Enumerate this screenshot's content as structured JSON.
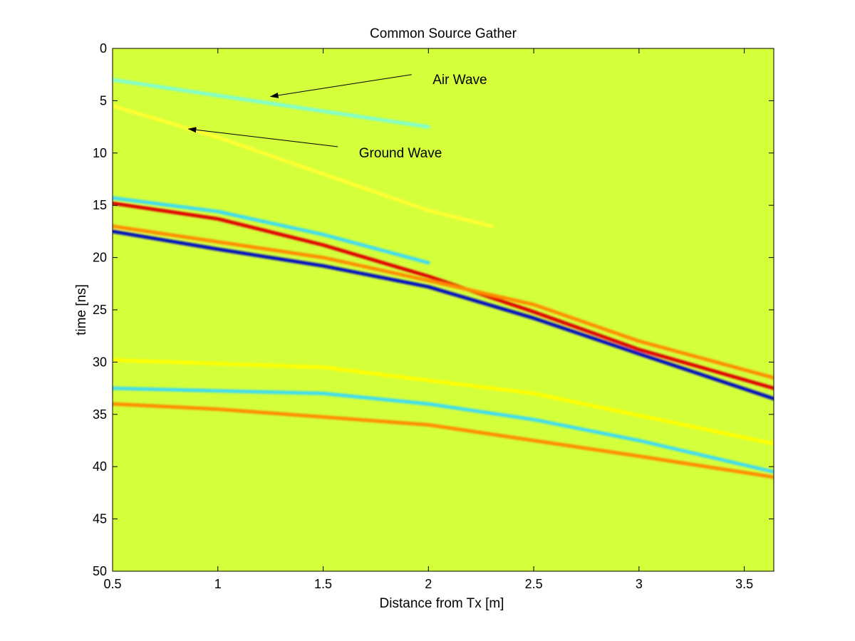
{
  "chart_data": {
    "type": "heatmap",
    "title": "Common Source Gather",
    "xlabel": "Distance from Tx [m]",
    "ylabel": "time [ns]",
    "xlim": [
      0.5,
      3.64
    ],
    "ylim": [
      0,
      50
    ],
    "y_direction": "reversed",
    "x_ticks": [
      0.5,
      1,
      1.5,
      2,
      2.5,
      3,
      3.5
    ],
    "x_tick_labels": [
      "0.5",
      "1",
      "1.5",
      "2",
      "2.5",
      "3",
      "3.5"
    ],
    "y_ticks": [
      0,
      5,
      10,
      15,
      20,
      25,
      30,
      35,
      40,
      45,
      50
    ],
    "y_tick_labels": [
      "0",
      "5",
      "10",
      "15",
      "20",
      "25",
      "30",
      "35",
      "40",
      "45",
      "50"
    ],
    "grid": false,
    "colormap": "jet",
    "background_color": "#d4ff3b",
    "series": [
      {
        "name": "Air Wave",
        "color": "#7fffcf",
        "points": [
          [
            0.5,
            3.0
          ],
          [
            1.0,
            4.5
          ],
          [
            1.5,
            6.0
          ],
          [
            2.0,
            7.5
          ]
        ]
      },
      {
        "name": "Ground Wave",
        "color": "#ffff33",
        "points": [
          [
            0.5,
            5.5
          ],
          [
            1.0,
            8.5
          ],
          [
            1.5,
            12.0
          ],
          [
            2.0,
            15.5
          ],
          [
            2.3,
            17.0
          ]
        ]
      },
      {
        "color": "#e00000",
        "points": [
          [
            0.5,
            14.8
          ],
          [
            1.0,
            16.3
          ],
          [
            1.5,
            18.8
          ],
          [
            2.0,
            21.8
          ],
          [
            2.5,
            25.2
          ],
          [
            3.0,
            28.8
          ],
          [
            3.64,
            32.5
          ]
        ]
      },
      {
        "color": "#0010c0",
        "points": [
          [
            0.5,
            17.5
          ],
          [
            1.0,
            19.2
          ],
          [
            1.5,
            20.8
          ],
          [
            2.0,
            22.8
          ],
          [
            2.5,
            25.8
          ],
          [
            3.0,
            29.2
          ],
          [
            3.64,
            33.5
          ]
        ]
      },
      {
        "color": "#ff8c00",
        "points": [
          [
            0.5,
            17.0
          ],
          [
            1.0,
            18.5
          ],
          [
            1.5,
            20.0
          ],
          [
            2.0,
            22.2
          ],
          [
            2.5,
            24.5
          ],
          [
            3.0,
            28.0
          ],
          [
            3.64,
            31.5
          ]
        ]
      },
      {
        "color": "#3fdcf0",
        "points": [
          [
            0.5,
            14.3
          ],
          [
            1.0,
            15.6
          ],
          [
            1.5,
            17.8
          ],
          [
            2.0,
            20.5
          ]
        ]
      },
      {
        "color": "#3fdcf0",
        "points": [
          [
            0.5,
            32.5
          ],
          [
            1.5,
            33.0
          ],
          [
            2.0,
            34.0
          ],
          [
            2.5,
            35.5
          ],
          [
            3.0,
            37.5
          ],
          [
            3.64,
            40.5
          ]
        ]
      },
      {
        "color": "#ff8c00",
        "points": [
          [
            0.5,
            34.0
          ],
          [
            1.0,
            34.5
          ],
          [
            2.0,
            36.0
          ],
          [
            2.5,
            37.5
          ],
          [
            3.0,
            39.0
          ],
          [
            3.64,
            41.0
          ]
        ]
      },
      {
        "color": "#ffff00",
        "points": [
          [
            0.5,
            29.8
          ],
          [
            1.5,
            30.5
          ],
          [
            2.5,
            33.0
          ],
          [
            3.64,
            37.8
          ]
        ]
      }
    ],
    "annotations": [
      {
        "text": "Air Wave",
        "x": 2.02,
        "y": 3.0,
        "arrow_from": [
          1.92,
          2.5
        ],
        "arrow_to": [
          1.25,
          4.6
        ]
      },
      {
        "text": "Ground Wave",
        "x": 1.67,
        "y": 10.0,
        "arrow_from": [
          1.57,
          9.4
        ],
        "arrow_to": [
          0.86,
          7.7
        ]
      }
    ]
  }
}
